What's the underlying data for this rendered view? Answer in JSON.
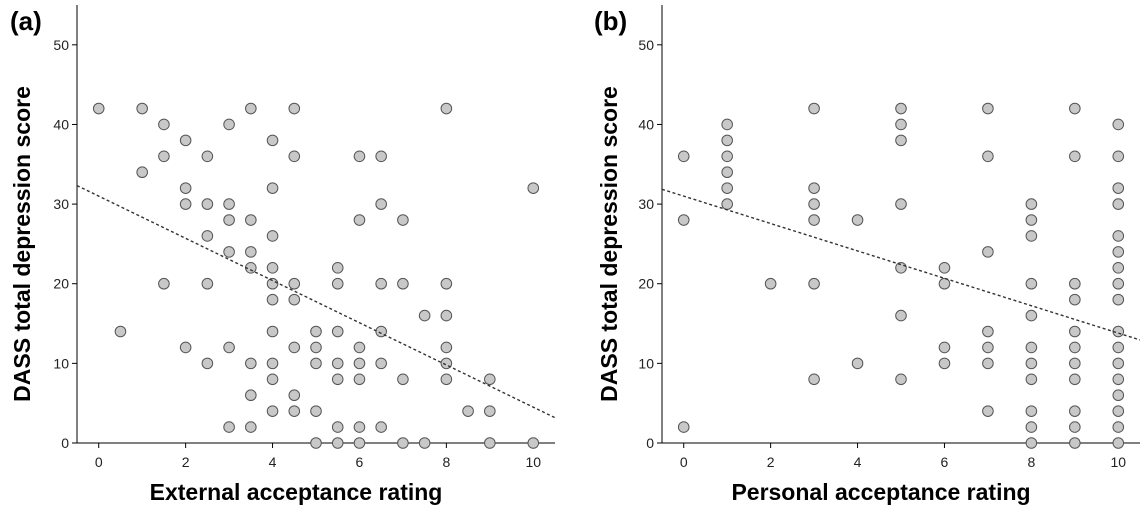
{
  "chart_data": [
    {
      "type": "scatter",
      "panel_label": "(a)",
      "xlabel": "External acceptance rating",
      "ylabel": "DASS total depression score",
      "xlim": [
        -0.5,
        10.5
      ],
      "ylim": [
        0,
        55
      ],
      "xticks": [
        0,
        2,
        4,
        6,
        8,
        10
      ],
      "yticks": [
        0,
        10,
        20,
        30,
        40,
        50
      ],
      "fit_line": {
        "style": "dotted",
        "intercept": 31.0,
        "slope": -2.65
      },
      "points": [
        [
          0,
          42
        ],
        [
          0.5,
          14
        ],
        [
          1,
          42
        ],
        [
          1,
          34
        ],
        [
          1.5,
          40
        ],
        [
          1.5,
          36
        ],
        [
          1.5,
          20
        ],
        [
          2,
          38
        ],
        [
          2,
          32
        ],
        [
          2,
          30
        ],
        [
          2,
          12
        ],
        [
          2.5,
          36
        ],
        [
          2.5,
          30
        ],
        [
          2.5,
          26
        ],
        [
          2.5,
          20
        ],
        [
          2.5,
          10
        ],
        [
          3,
          40
        ],
        [
          3,
          30
        ],
        [
          3,
          28
        ],
        [
          3,
          24
        ],
        [
          3,
          12
        ],
        [
          3,
          2
        ],
        [
          3.5,
          42
        ],
        [
          3.5,
          28
        ],
        [
          3.5,
          24
        ],
        [
          3.5,
          22
        ],
        [
          3.5,
          10
        ],
        [
          3.5,
          6
        ],
        [
          3.5,
          2
        ],
        [
          4,
          38
        ],
        [
          4,
          32
        ],
        [
          4,
          26
        ],
        [
          4,
          22
        ],
        [
          4,
          20
        ],
        [
          4,
          18
        ],
        [
          4,
          14
        ],
        [
          4,
          10
        ],
        [
          4,
          8
        ],
        [
          4,
          4
        ],
        [
          4.5,
          42
        ],
        [
          4.5,
          36
        ],
        [
          4.5,
          20
        ],
        [
          4.5,
          18
        ],
        [
          4.5,
          12
        ],
        [
          4.5,
          6
        ],
        [
          4.5,
          4
        ],
        [
          5,
          14
        ],
        [
          5,
          12
        ],
        [
          5,
          10
        ],
        [
          5,
          4
        ],
        [
          5,
          0
        ],
        [
          5.5,
          22
        ],
        [
          5.5,
          20
        ],
        [
          5.5,
          14
        ],
        [
          5.5,
          10
        ],
        [
          5.5,
          8
        ],
        [
          5.5,
          2
        ],
        [
          5.5,
          0
        ],
        [
          6,
          36
        ],
        [
          6,
          28
        ],
        [
          6,
          12
        ],
        [
          6,
          10
        ],
        [
          6,
          8
        ],
        [
          6,
          2
        ],
        [
          6,
          0
        ],
        [
          6.5,
          36
        ],
        [
          6.5,
          30
        ],
        [
          6.5,
          20
        ],
        [
          6.5,
          14
        ],
        [
          6.5,
          10
        ],
        [
          6.5,
          2
        ],
        [
          7,
          28
        ],
        [
          7,
          20
        ],
        [
          7,
          8
        ],
        [
          7,
          0
        ],
        [
          7.5,
          16
        ],
        [
          7.5,
          0
        ],
        [
          8,
          42
        ],
        [
          8,
          20
        ],
        [
          8,
          16
        ],
        [
          8,
          12
        ],
        [
          8,
          10
        ],
        [
          8,
          8
        ],
        [
          8.5,
          4
        ],
        [
          9,
          8
        ],
        [
          9,
          4
        ],
        [
          9,
          0
        ],
        [
          10,
          32
        ],
        [
          10,
          0
        ]
      ]
    },
    {
      "type": "scatter",
      "panel_label": "(b)",
      "xlabel": "Personal acceptance rating",
      "ylabel": "DASS total depression score",
      "xlim": [
        -0.5,
        10.5
      ],
      "ylim": [
        0,
        55
      ],
      "xticks": [
        0,
        2,
        4,
        6,
        8,
        10
      ],
      "yticks": [
        0,
        10,
        20,
        30,
        40,
        50
      ],
      "fit_line": {
        "style": "dotted",
        "intercept": 31.0,
        "slope": -1.72
      },
      "points": [
        [
          0,
          36
        ],
        [
          0,
          28
        ],
        [
          0,
          2
        ],
        [
          1,
          40
        ],
        [
          1,
          38
        ],
        [
          1,
          36
        ],
        [
          1,
          34
        ],
        [
          1,
          32
        ],
        [
          1,
          30
        ],
        [
          2,
          20
        ],
        [
          3,
          42
        ],
        [
          3,
          32
        ],
        [
          3,
          30
        ],
        [
          3,
          28
        ],
        [
          3,
          20
        ],
        [
          3,
          8
        ],
        [
          4,
          28
        ],
        [
          4,
          10
        ],
        [
          5,
          42
        ],
        [
          5,
          40
        ],
        [
          5,
          38
        ],
        [
          5,
          30
        ],
        [
          5,
          22
        ],
        [
          5,
          16
        ],
        [
          5,
          8
        ],
        [
          6,
          22
        ],
        [
          6,
          20
        ],
        [
          6,
          12
        ],
        [
          6,
          10
        ],
        [
          7,
          42
        ],
        [
          7,
          36
        ],
        [
          7,
          24
        ],
        [
          7,
          14
        ],
        [
          7,
          12
        ],
        [
          7,
          10
        ],
        [
          7,
          4
        ],
        [
          8,
          30
        ],
        [
          8,
          28
        ],
        [
          8,
          26
        ],
        [
          8,
          20
        ],
        [
          8,
          16
        ],
        [
          8,
          12
        ],
        [
          8,
          10
        ],
        [
          8,
          8
        ],
        [
          8,
          4
        ],
        [
          8,
          2
        ],
        [
          8,
          0
        ],
        [
          9,
          42
        ],
        [
          9,
          36
        ],
        [
          9,
          20
        ],
        [
          9,
          18
        ],
        [
          9,
          14
        ],
        [
          9,
          12
        ],
        [
          9,
          10
        ],
        [
          9,
          8
        ],
        [
          9,
          4
        ],
        [
          9,
          2
        ],
        [
          9,
          0
        ],
        [
          10,
          40
        ],
        [
          10,
          36
        ],
        [
          10,
          32
        ],
        [
          10,
          30
        ],
        [
          10,
          26
        ],
        [
          10,
          24
        ],
        [
          10,
          22
        ],
        [
          10,
          20
        ],
        [
          10,
          18
        ],
        [
          10,
          14
        ],
        [
          10,
          12
        ],
        [
          10,
          10
        ],
        [
          10,
          8
        ],
        [
          10,
          6
        ],
        [
          10,
          4
        ],
        [
          10,
          2
        ],
        [
          10,
          0
        ]
      ]
    }
  ]
}
